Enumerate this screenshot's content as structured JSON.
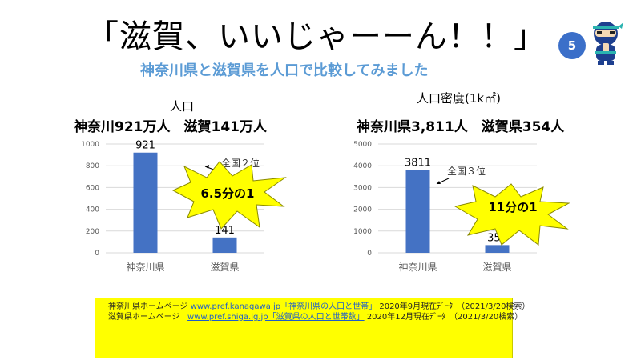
{
  "title": "「滋賀、いいじゃーーん！！」",
  "subtitle": "神奈川県と滋賀県を人口で比較してみました",
  "slide_number": "5",
  "colors": {
    "bar": "#4472c4",
    "subtitle": "#5b9bd5",
    "callout": "#ffff00",
    "badge": "#3b6fc9"
  },
  "left_panel": {
    "heading": "人口",
    "summary": "神奈川921万人　滋賀141万人",
    "annotation": "全国２位",
    "callout": "6.5分の1"
  },
  "right_panel": {
    "heading": "人口密度(1k㎡)",
    "summary": "神奈川県3,811人　滋賀県354人",
    "annotation": "全国３位",
    "callout": "11分の1"
  },
  "sources": {
    "line1_prefix": "神奈川県ホームページ",
    "line1_url": "www.pref.kanagawa.jp",
    "line1_page": "「神奈川県の人口と世帯」",
    "line1_suffix": "2020年9月現在ﾃﾞｰﾀ　（2021/3/20検索）",
    "line2_prefix": "滋賀県ホームページ",
    "line2_url": "www.pref.shiga.lg.jp",
    "line2_page": "「滋賀県の人口と世帯数」",
    "line2_suffix": "2020年12月現在ﾃﾞｰﾀ　（2021/3/20検索）"
  },
  "chart_data": [
    {
      "type": "bar",
      "categories": [
        "神奈川県",
        "滋賀県"
      ],
      "values": [
        921,
        141
      ],
      "ylim": [
        0,
        1000
      ],
      "yticks": [
        0,
        200,
        400,
        600,
        800,
        1000
      ],
      "grid": true
    },
    {
      "type": "bar",
      "categories": [
        "神奈川県",
        "滋賀県"
      ],
      "values": [
        3811,
        354
      ],
      "ylim": [
        0,
        5000
      ],
      "yticks": [
        0,
        1000,
        2000,
        3000,
        4000,
        5000
      ],
      "grid": true
    }
  ]
}
